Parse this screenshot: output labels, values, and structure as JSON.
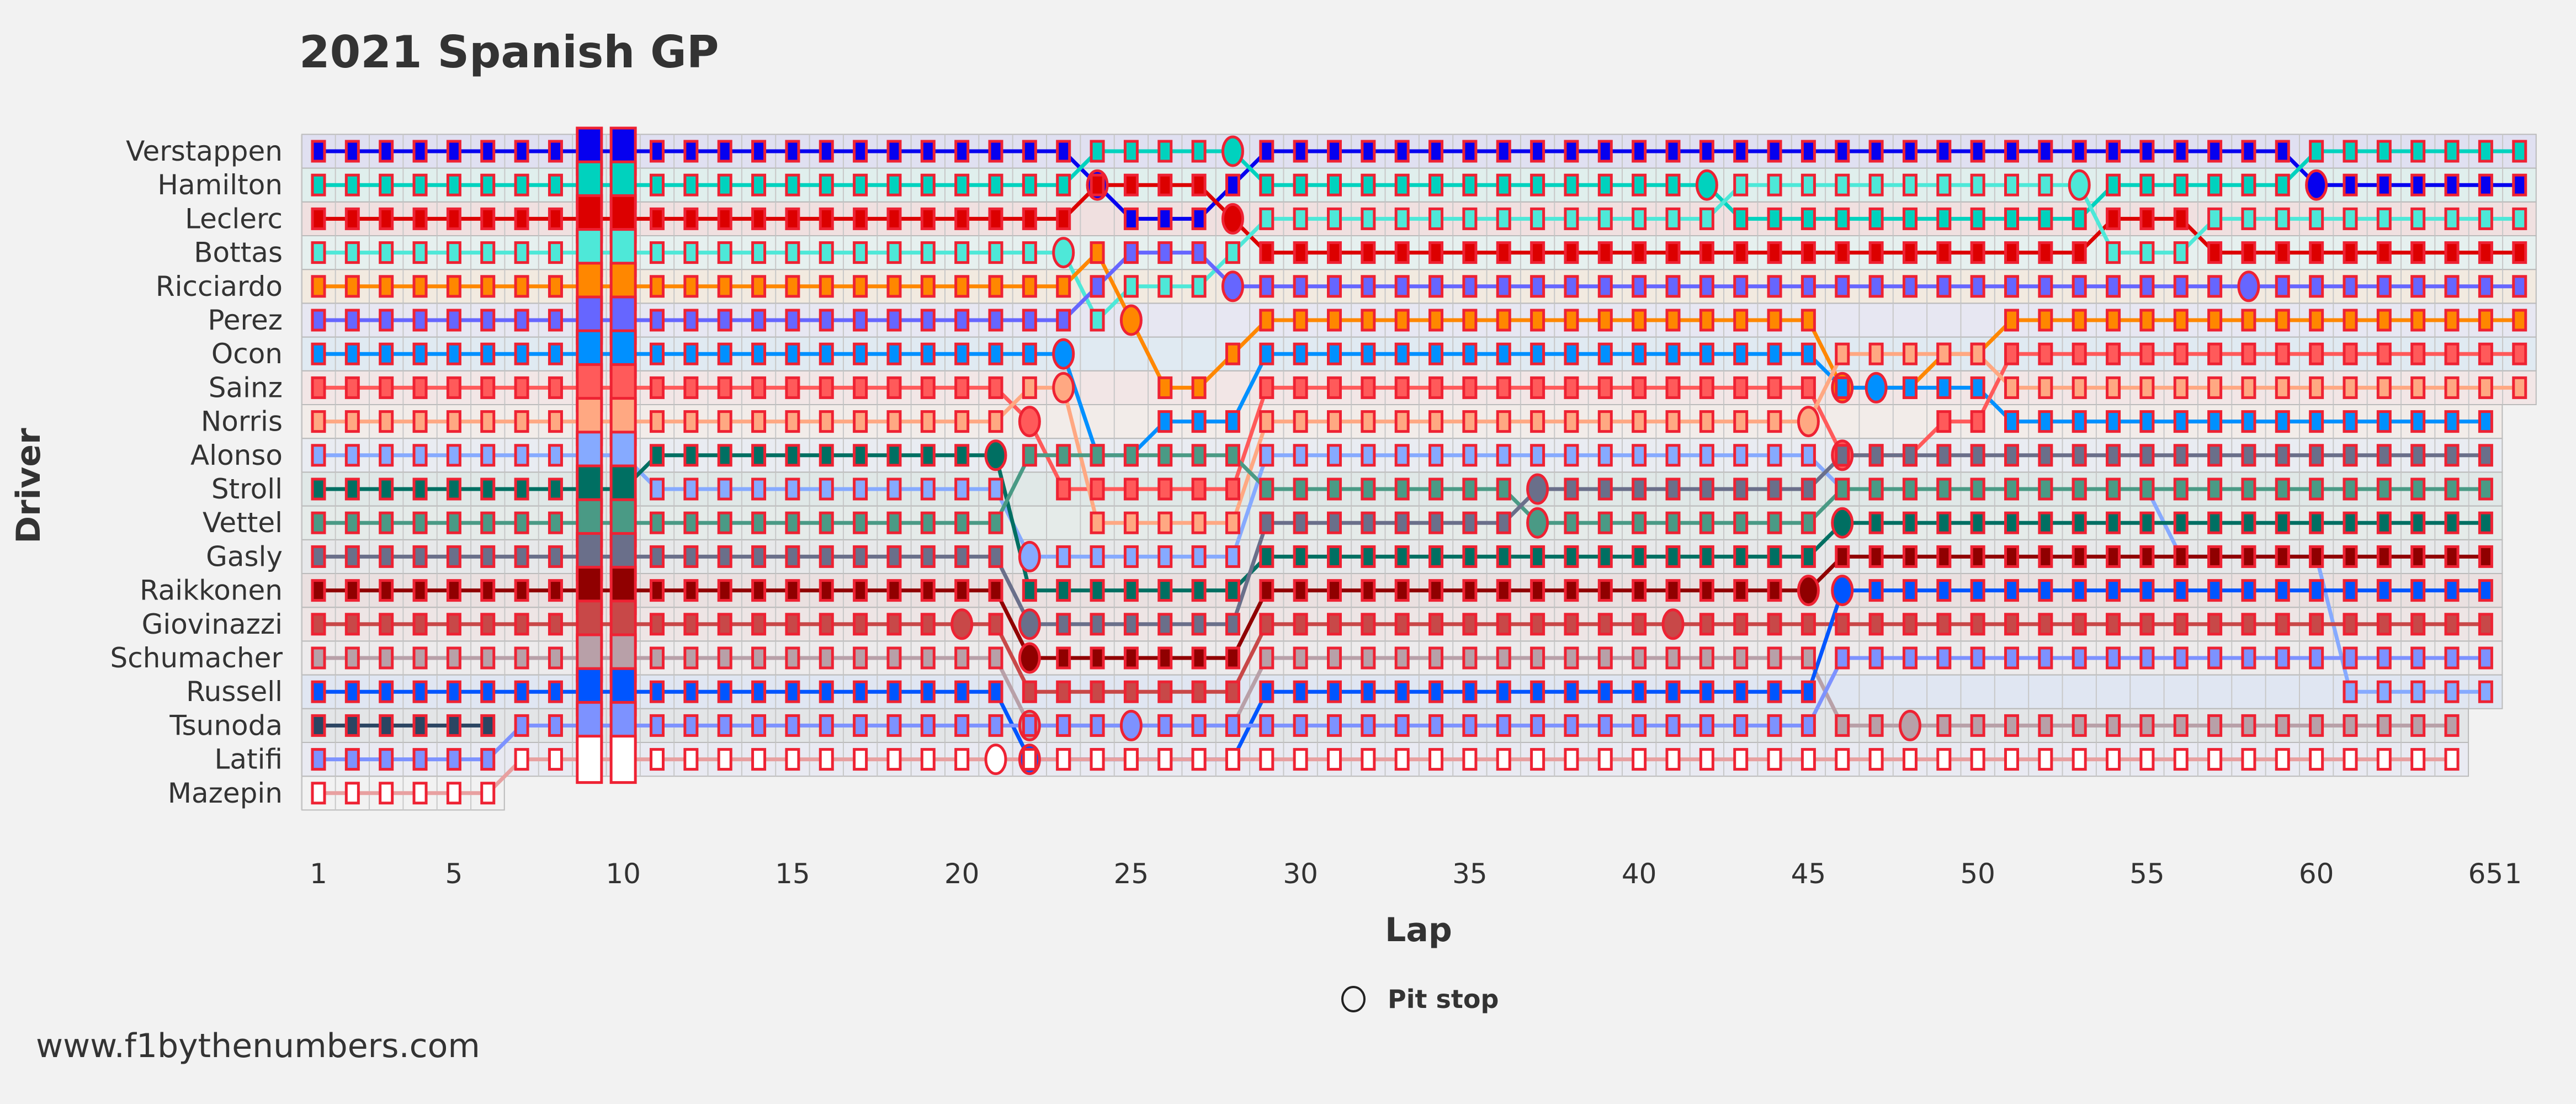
{
  "chart_data": {
    "type": "line",
    "title": "2021 Spanish GP",
    "xlabel": "Lap",
    "ylabel": "Driver",
    "xlim": [
      1,
      66
    ],
    "x_ticks": [
      {
        "lap": 1,
        "label": "1"
      },
      {
        "lap": 5,
        "label": "5"
      },
      {
        "lap": 10,
        "label": "10"
      },
      {
        "lap": 15,
        "label": "15"
      },
      {
        "lap": 20,
        "label": "20"
      },
      {
        "lap": 25,
        "label": "25"
      },
      {
        "lap": 30,
        "label": "30"
      },
      {
        "lap": 35,
        "label": "35"
      },
      {
        "lap": 40,
        "label": "40"
      },
      {
        "lap": 45,
        "label": "45"
      },
      {
        "lap": 50,
        "label": "50"
      },
      {
        "lap": 55,
        "label": "55"
      },
      {
        "lap": 60,
        "label": "60"
      },
      {
        "lap": 65,
        "label": "65"
      },
      {
        "lap": 66,
        "label": "1"
      }
    ],
    "row_labels": [
      "Verstappen",
      "Hamilton",
      "Leclerc",
      "Bottas",
      "Ricciardo",
      "Perez",
      "Ocon",
      "Sainz",
      "Norris",
      "Alonso",
      "Stroll",
      "Vettel",
      "Gasly",
      "Raikkonen",
      "Giovinazzi",
      "Schumacher",
      "Russell",
      "Tsunoda",
      "Latifi",
      "Mazepin"
    ],
    "enlarged_laps": [
      9,
      10
    ],
    "legend": {
      "pit_label": "Pit stop",
      "placement": "bottom-center"
    },
    "drivers": [
      {
        "name": "Verstappen",
        "color": "#0600ef",
        "stints": [
          [
            1,
            23,
            1
          ],
          [
            24,
            24,
            2
          ],
          [
            25,
            27,
            3
          ],
          [
            28,
            28,
            2
          ],
          [
            29,
            59,
            1
          ],
          [
            60,
            66,
            2
          ]
        ],
        "pits": [
          24,
          60
        ]
      },
      {
        "name": "Hamilton",
        "color": "#00d2be",
        "stints": [
          [
            1,
            23,
            2
          ],
          [
            24,
            28,
            1
          ],
          [
            29,
            42,
            2
          ],
          [
            43,
            53,
            3
          ],
          [
            54,
            59,
            2
          ],
          [
            60,
            66,
            1
          ]
        ],
        "pits": [
          28,
          42
        ]
      },
      {
        "name": "Leclerc",
        "color": "#dc0000",
        "stints": [
          [
            1,
            23,
            3
          ],
          [
            24,
            27,
            2
          ],
          [
            28,
            28,
            3
          ],
          [
            29,
            53,
            4
          ],
          [
            54,
            56,
            3
          ],
          [
            57,
            66,
            4
          ]
        ],
        "pits": [
          28
        ]
      },
      {
        "name": "Bottas",
        "color": "#4ee8d8",
        "stints": [
          [
            1,
            23,
            4
          ],
          [
            24,
            24,
            6
          ],
          [
            25,
            27,
            5
          ],
          [
            28,
            28,
            4
          ],
          [
            29,
            42,
            3
          ],
          [
            43,
            53,
            2
          ],
          [
            54,
            56,
            4
          ],
          [
            57,
            66,
            3
          ]
        ],
        "pits": [
          23,
          53
        ]
      },
      {
        "name": "Ricciardo",
        "color": "#ff8700",
        "stints": [
          [
            1,
            23,
            5
          ],
          [
            24,
            24,
            4
          ],
          [
            25,
            25,
            6
          ],
          [
            26,
            27,
            8
          ],
          [
            28,
            28,
            7
          ],
          [
            29,
            45,
            6
          ],
          [
            46,
            48,
            8
          ],
          [
            49,
            50,
            7
          ],
          [
            51,
            66,
            6
          ]
        ],
        "pits": [
          25,
          46
        ]
      },
      {
        "name": "Perez",
        "color": "#6666ff",
        "stints": [
          [
            1,
            23,
            6
          ],
          [
            24,
            24,
            5
          ],
          [
            25,
            27,
            4
          ],
          [
            28,
            28,
            5
          ],
          [
            29,
            66,
            5
          ]
        ],
        "pits": [
          28,
          58
        ]
      },
      {
        "name": "Ocon",
        "color": "#0090ff",
        "stints": [
          [
            1,
            23,
            7
          ],
          [
            24,
            25,
            10
          ],
          [
            26,
            28,
            9
          ],
          [
            29,
            45,
            7
          ],
          [
            46,
            50,
            8
          ],
          [
            51,
            65,
            9
          ]
        ],
        "pits": [
          23,
          47
        ]
      },
      {
        "name": "Sainz",
        "color": "#ff5a5a",
        "stints": [
          [
            1,
            21,
            8
          ],
          [
            22,
            22,
            9
          ],
          [
            23,
            28,
            11
          ],
          [
            29,
            45,
            8
          ],
          [
            46,
            48,
            10
          ],
          [
            49,
            50,
            9
          ],
          [
            51,
            66,
            7
          ]
        ],
        "pits": [
          22,
          46
        ]
      },
      {
        "name": "Norris",
        "color": "#ffa882",
        "stints": [
          [
            1,
            21,
            9
          ],
          [
            22,
            23,
            8
          ],
          [
            24,
            28,
            12
          ],
          [
            29,
            45,
            9
          ],
          [
            46,
            50,
            7
          ],
          [
            51,
            66,
            8
          ]
        ],
        "pits": [
          23,
          45
        ]
      },
      {
        "name": "Alonso",
        "color": "#86aaff",
        "stints": [
          [
            1,
            10,
            10
          ],
          [
            11,
            21,
            11
          ],
          [
            22,
            28,
            13
          ],
          [
            29,
            45,
            10
          ],
          [
            46,
            55,
            11
          ],
          [
            56,
            60,
            13
          ],
          [
            61,
            65,
            17
          ]
        ],
        "pits": [
          22
        ]
      },
      {
        "name": "Stroll",
        "color": "#006f62",
        "stints": [
          [
            1,
            10,
            11
          ],
          [
            11,
            21,
            10
          ],
          [
            22,
            28,
            14
          ],
          [
            29,
            45,
            13
          ],
          [
            46,
            65,
            12
          ]
        ],
        "pits": [
          21,
          46
        ]
      },
      {
        "name": "Vettel",
        "color": "#4a9a85",
        "stints": [
          [
            1,
            21,
            12
          ],
          [
            22,
            28,
            10
          ],
          [
            29,
            36,
            11
          ],
          [
            37,
            45,
            12
          ],
          [
            46,
            65,
            11
          ]
        ],
        "pits": [
          37
        ]
      },
      {
        "name": "Gasly",
        "color": "#6a6f8a",
        "stints": [
          [
            1,
            21,
            13
          ],
          [
            22,
            28,
            15
          ],
          [
            29,
            36,
            12
          ],
          [
            37,
            45,
            11
          ],
          [
            46,
            65,
            10
          ]
        ],
        "pits": [
          22,
          37
        ]
      },
      {
        "name": "Raikkonen",
        "color": "#900000",
        "stints": [
          [
            1,
            21,
            14
          ],
          [
            22,
            28,
            16
          ],
          [
            29,
            45,
            14
          ],
          [
            46,
            65,
            13
          ]
        ],
        "pits": [
          22,
          45
        ]
      },
      {
        "name": "Giovinazzi",
        "color": "#c84848",
        "stints": [
          [
            1,
            21,
            15
          ],
          [
            22,
            28,
            17
          ],
          [
            29,
            45,
            15
          ],
          [
            46,
            65,
            15
          ]
        ],
        "pits": [
          20,
          41
        ]
      },
      {
        "name": "Schumacher",
        "color": "#b8a0a8",
        "stints": [
          [
            1,
            21,
            16
          ],
          [
            22,
            28,
            18
          ],
          [
            29,
            45,
            16
          ],
          [
            46,
            64,
            18
          ]
        ],
        "pits": [
          22,
          48
        ]
      },
      {
        "name": "Russell",
        "color": "#0055ff",
        "stints": [
          [
            1,
            21,
            17
          ],
          [
            22,
            28,
            19
          ],
          [
            29,
            45,
            17
          ],
          [
            46,
            65,
            14
          ]
        ],
        "pits": [
          22,
          46
        ]
      },
      {
        "name": "Tsunoda",
        "color": "#2b4562",
        "stints": [
          [
            1,
            6,
            18
          ]
        ],
        "pits": []
      },
      {
        "name": "Latifi",
        "color": "#7d92ff",
        "stints": [
          [
            1,
            6,
            19
          ],
          [
            7,
            21,
            18
          ],
          [
            22,
            45,
            18
          ],
          [
            46,
            65,
            16
          ]
        ],
        "pits": [
          25
        ]
      },
      {
        "name": "Mazepin",
        "color": "#ffffff",
        "stints": [
          [
            1,
            6,
            20
          ],
          [
            7,
            64,
            19
          ]
        ],
        "pits": [
          21
        ]
      }
    ]
  },
  "watermark": "www.f1bythenumbers.com"
}
